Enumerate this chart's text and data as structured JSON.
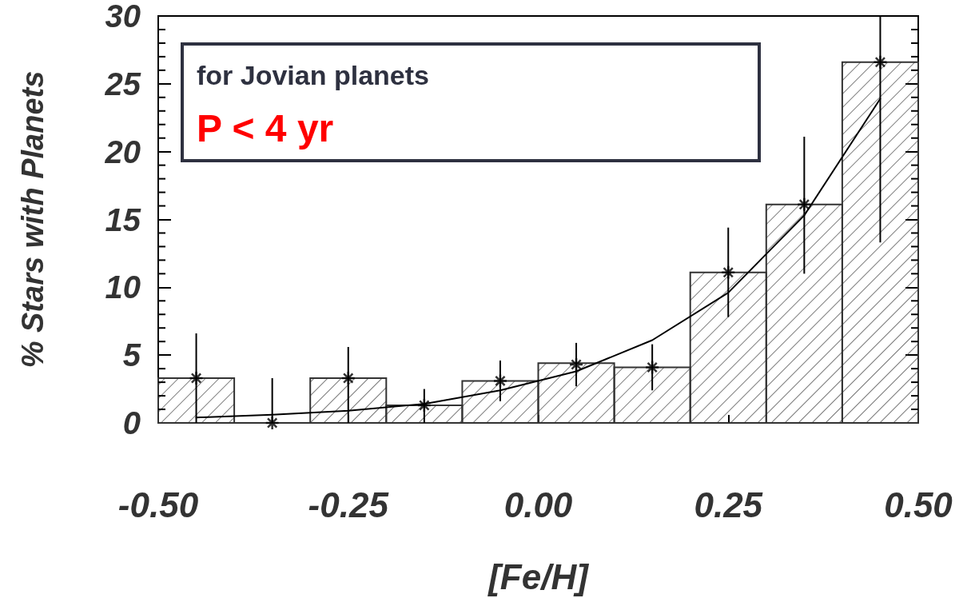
{
  "chart_data": {
    "type": "histogram",
    "xlabel": "[Fe/H]",
    "ylabel": "% Stars with Planets",
    "annotations": [
      "for Jovian planets",
      "P < 4 yr"
    ],
    "bins": [
      -0.5,
      -0.4,
      -0.3,
      -0.2,
      -0.1,
      0,
      0.1,
      0.2,
      0.3,
      0.4,
      0.5
    ],
    "values": [
      3.3,
      0,
      3.3,
      1.3,
      3.1,
      4.4,
      4.1,
      11.1,
      16.1,
      26.6
    ],
    "color": "#333333",
    "xlim": [
      -0.5,
      0.5
    ],
    "xticks": [
      {
        "value": -0.5,
        "label": "-0.50"
      },
      {
        "value": -0.25,
        "label": "-0.25"
      },
      {
        "value": 0,
        "label": "0.00"
      },
      {
        "value": 0.25,
        "label": "0.25"
      },
      {
        "value": 0.5,
        "label": "0.50"
      }
    ],
    "ylim": [
      0,
      30
    ],
    "yticks": [
      0,
      5,
      10,
      15,
      20,
      25,
      30
    ],
    "series": [
      {
        "type": "line",
        "x": [
          -0.45,
          -0.35,
          -0.25,
          -0.15,
          -0.05,
          0.05,
          0.15,
          0.25,
          0.35,
          0.45
        ],
        "values": [
          0.4,
          0.6,
          0.9,
          1.4,
          2.4,
          3.8,
          6.1,
          9.6,
          15.3,
          23.9
        ],
        "color": "#000000",
        "marker": "none",
        "line_style": "solid"
      },
      {
        "type": "scatter",
        "x": [
          -0.45,
          -0.35,
          -0.25,
          -0.15,
          -0.05,
          0.05,
          0.15,
          0.25,
          0.35,
          0.45
        ],
        "values": [
          3.3,
          0,
          3.3,
          1.3,
          3.1,
          4.3,
          4.1,
          11.1,
          16.1,
          26.6
        ],
        "errors": [
          [
            0,
            6.6
          ],
          [
            0,
            3.3
          ],
          [
            0,
            5.6
          ],
          [
            0,
            2.5
          ],
          [
            1.6,
            4.6
          ],
          [
            2.7,
            5.9
          ],
          [
            2.4,
            5.8
          ],
          [
            7.8,
            14.4
          ],
          [
            11.0,
            21.1
          ],
          [
            13.3,
            30
          ]
        ],
        "color": "#000000",
        "marker": "cross"
      }
    ]
  }
}
